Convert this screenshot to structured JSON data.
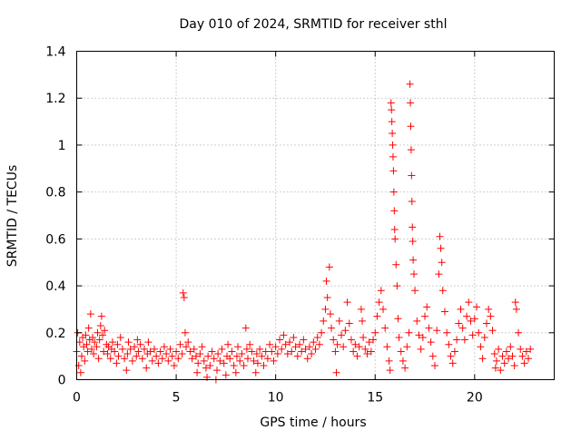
{
  "chart_data": {
    "type": "scatter",
    "title": "Day 010 of 2024, SRMTID for receiver sthl",
    "xlabel": "GPS time / hours",
    "ylabel": "SRMTID / TECUs",
    "xlim": [
      0,
      24
    ],
    "ylim": [
      0,
      1.4
    ],
    "xticks": [
      0,
      5,
      10,
      15,
      20
    ],
    "xtick_labels": [
      "0",
      "5",
      "10",
      "15",
      "20"
    ],
    "yticks": [
      0,
      0.2,
      0.4,
      0.6,
      0.8,
      1.0,
      1.2,
      1.4
    ],
    "ytick_labels": [
      "0",
      "0.2",
      "0.4",
      "0.6",
      "0.8",
      "1",
      "1.2",
      "1.4"
    ],
    "grid": true,
    "marker": "+",
    "color": "#ff0000",
    "series": [
      {
        "name": "sthl",
        "points": [
          [
            0.0,
            0.12
          ],
          [
            0.05,
            0.2
          ],
          [
            0.1,
            0.06
          ],
          [
            0.15,
            0.16
          ],
          [
            0.2,
            0.03
          ],
          [
            0.25,
            0.1
          ],
          [
            0.3,
            0.18
          ],
          [
            0.35,
            0.14
          ],
          [
            0.4,
            0.08
          ],
          [
            0.45,
            0.19
          ],
          [
            0.5,
            0.15
          ],
          [
            0.55,
            0.12
          ],
          [
            0.6,
            0.22
          ],
          [
            0.65,
            0.17
          ],
          [
            0.7,
            0.28
          ],
          [
            0.75,
            0.13
          ],
          [
            0.8,
            0.18
          ],
          [
            0.85,
            0.11
          ],
          [
            0.9,
            0.16
          ],
          [
            1.0,
            0.14
          ],
          [
            1.05,
            0.2
          ],
          [
            1.1,
            0.09
          ],
          [
            1.15,
            0.17
          ],
          [
            1.2,
            0.23
          ],
          [
            1.25,
            0.27
          ],
          [
            1.3,
            0.19
          ],
          [
            1.35,
            0.12
          ],
          [
            1.4,
            0.21
          ],
          [
            1.5,
            0.15
          ],
          [
            1.55,
            0.11
          ],
          [
            1.6,
            0.14
          ],
          [
            1.7,
            0.09
          ],
          [
            1.75,
            0.13
          ],
          [
            1.8,
            0.16
          ],
          [
            1.9,
            0.12
          ],
          [
            2.0,
            0.07
          ],
          [
            2.05,
            0.15
          ],
          [
            2.1,
            0.1
          ],
          [
            2.2,
            0.18
          ],
          [
            2.3,
            0.13
          ],
          [
            2.4,
            0.09
          ],
          [
            2.5,
            0.04
          ],
          [
            2.55,
            0.11
          ],
          [
            2.6,
            0.16
          ],
          [
            2.7,
            0.13
          ],
          [
            2.8,
            0.08
          ],
          [
            2.9,
            0.14
          ],
          [
            3.0,
            0.1
          ],
          [
            3.05,
            0.17
          ],
          [
            3.1,
            0.12
          ],
          [
            3.2,
            0.15
          ],
          [
            3.3,
            0.09
          ],
          [
            3.4,
            0.13
          ],
          [
            3.5,
            0.05
          ],
          [
            3.55,
            0.11
          ],
          [
            3.6,
            0.16
          ],
          [
            3.7,
            0.12
          ],
          [
            3.8,
            0.08
          ],
          [
            3.9,
            0.13
          ],
          [
            4.0,
            0.1
          ],
          [
            4.1,
            0.07
          ],
          [
            4.2,
            0.12
          ],
          [
            4.3,
            0.09
          ],
          [
            4.4,
            0.14
          ],
          [
            4.5,
            0.11
          ],
          [
            4.6,
            0.08
          ],
          [
            4.7,
            0.13
          ],
          [
            4.8,
            0.1
          ],
          [
            4.9,
            0.06
          ],
          [
            5.0,
            0.12
          ],
          [
            5.1,
            0.09
          ],
          [
            5.2,
            0.15
          ],
          [
            5.3,
            0.11
          ],
          [
            5.35,
            0.37
          ],
          [
            5.4,
            0.35
          ],
          [
            5.45,
            0.2
          ],
          [
            5.5,
            0.14
          ],
          [
            5.6,
            0.16
          ],
          [
            5.7,
            0.12
          ],
          [
            5.8,
            0.09
          ],
          [
            5.9,
            0.13
          ],
          [
            6.0,
            0.1
          ],
          [
            6.05,
            0.03
          ],
          [
            6.1,
            0.07
          ],
          [
            6.2,
            0.11
          ],
          [
            6.3,
            0.14
          ],
          [
            6.4,
            0.08
          ],
          [
            6.5,
            0.05
          ],
          [
            6.55,
            0.01
          ],
          [
            6.6,
            0.1
          ],
          [
            6.7,
            0.06
          ],
          [
            6.8,
            0.12
          ],
          [
            6.9,
            0.09
          ],
          [
            7.0,
            0.0
          ],
          [
            7.05,
            0.04
          ],
          [
            7.1,
            0.11
          ],
          [
            7.2,
            0.08
          ],
          [
            7.3,
            0.13
          ],
          [
            7.4,
            0.07
          ],
          [
            7.5,
            0.02
          ],
          [
            7.55,
            0.1
          ],
          [
            7.6,
            0.15
          ],
          [
            7.7,
            0.09
          ],
          [
            7.8,
            0.12
          ],
          [
            7.9,
            0.06
          ],
          [
            8.0,
            0.03
          ],
          [
            8.05,
            0.1
          ],
          [
            8.1,
            0.14
          ],
          [
            8.2,
            0.08
          ],
          [
            8.3,
            0.11
          ],
          [
            8.4,
            0.06
          ],
          [
            8.5,
            0.22
          ],
          [
            8.55,
            0.13
          ],
          [
            8.6,
            0.09
          ],
          [
            8.7,
            0.15
          ],
          [
            8.8,
            0.12
          ],
          [
            8.9,
            0.08
          ],
          [
            9.0,
            0.03
          ],
          [
            9.05,
            0.11
          ],
          [
            9.1,
            0.07
          ],
          [
            9.2,
            0.13
          ],
          [
            9.3,
            0.1
          ],
          [
            9.4,
            0.06
          ],
          [
            9.5,
            0.12
          ],
          [
            9.6,
            0.09
          ],
          [
            9.7,
            0.15
          ],
          [
            9.8,
            0.12
          ],
          [
            9.9,
            0.08
          ],
          [
            10.0,
            0.14
          ],
          [
            10.1,
            0.11
          ],
          [
            10.2,
            0.17
          ],
          [
            10.3,
            0.13
          ],
          [
            10.4,
            0.19
          ],
          [
            10.5,
            0.15
          ],
          [
            10.6,
            0.11
          ],
          [
            10.7,
            0.16
          ],
          [
            10.8,
            0.12
          ],
          [
            10.9,
            0.18
          ],
          [
            11.0,
            0.14
          ],
          [
            11.1,
            0.1
          ],
          [
            11.2,
            0.15
          ],
          [
            11.3,
            0.12
          ],
          [
            11.4,
            0.17
          ],
          [
            11.5,
            0.13
          ],
          [
            11.6,
            0.09
          ],
          [
            11.7,
            0.14
          ],
          [
            11.8,
            0.11
          ],
          [
            11.9,
            0.16
          ],
          [
            12.0,
            0.13
          ],
          [
            12.1,
            0.18
          ],
          [
            12.2,
            0.15
          ],
          [
            12.3,
            0.2
          ],
          [
            12.4,
            0.25
          ],
          [
            12.5,
            0.3
          ],
          [
            12.55,
            0.42
          ],
          [
            12.6,
            0.35
          ],
          [
            12.7,
            0.48
          ],
          [
            12.75,
            0.28
          ],
          [
            12.8,
            0.22
          ],
          [
            12.9,
            0.17
          ],
          [
            13.0,
            0.12
          ],
          [
            13.05,
            0.03
          ],
          [
            13.1,
            0.15
          ],
          [
            13.2,
            0.25
          ],
          [
            13.3,
            0.19
          ],
          [
            13.4,
            0.14
          ],
          [
            13.5,
            0.21
          ],
          [
            13.6,
            0.33
          ],
          [
            13.7,
            0.24
          ],
          [
            13.8,
            0.17
          ],
          [
            13.9,
            0.12
          ],
          [
            14.0,
            0.15
          ],
          [
            14.1,
            0.1
          ],
          [
            14.2,
            0.14
          ],
          [
            14.3,
            0.3
          ],
          [
            14.35,
            0.25
          ],
          [
            14.4,
            0.18
          ],
          [
            14.5,
            0.13
          ],
          [
            14.6,
            0.11
          ],
          [
            14.7,
            0.16
          ],
          [
            14.8,
            0.12
          ],
          [
            14.9,
            0.17
          ],
          [
            15.0,
            0.2
          ],
          [
            15.1,
            0.27
          ],
          [
            15.2,
            0.33
          ],
          [
            15.3,
            0.38
          ],
          [
            15.4,
            0.3
          ],
          [
            15.5,
            0.22
          ],
          [
            15.6,
            0.14
          ],
          [
            15.7,
            0.08
          ],
          [
            15.75,
            0.04
          ],
          [
            15.8,
            1.18
          ],
          [
            15.82,
            1.15
          ],
          [
            15.84,
            1.1
          ],
          [
            15.86,
            1.05
          ],
          [
            15.88,
            1.0
          ],
          [
            15.9,
            0.95
          ],
          [
            15.92,
            0.89
          ],
          [
            15.94,
            0.8
          ],
          [
            15.96,
            0.72
          ],
          [
            15.98,
            0.64
          ],
          [
            16.0,
            0.6
          ],
          [
            16.05,
            0.49
          ],
          [
            16.1,
            0.4
          ],
          [
            16.15,
            0.26
          ],
          [
            16.2,
            0.18
          ],
          [
            16.3,
            0.12
          ],
          [
            16.4,
            0.08
          ],
          [
            16.5,
            0.05
          ],
          [
            16.6,
            0.14
          ],
          [
            16.7,
            0.2
          ],
          [
            16.75,
            1.26
          ],
          [
            16.77,
            1.18
          ],
          [
            16.79,
            1.08
          ],
          [
            16.81,
            0.98
          ],
          [
            16.83,
            0.87
          ],
          [
            16.85,
            0.76
          ],
          [
            16.87,
            0.65
          ],
          [
            16.89,
            0.59
          ],
          [
            16.91,
            0.51
          ],
          [
            16.95,
            0.45
          ],
          [
            17.0,
            0.38
          ],
          [
            17.1,
            0.25
          ],
          [
            17.2,
            0.19
          ],
          [
            17.3,
            0.13
          ],
          [
            17.4,
            0.18
          ],
          [
            17.5,
            0.27
          ],
          [
            17.6,
            0.31
          ],
          [
            17.7,
            0.22
          ],
          [
            17.8,
            0.16
          ],
          [
            17.9,
            0.1
          ],
          [
            18.0,
            0.06
          ],
          [
            18.1,
            0.21
          ],
          [
            18.2,
            0.45
          ],
          [
            18.25,
            0.61
          ],
          [
            18.3,
            0.56
          ],
          [
            18.35,
            0.5
          ],
          [
            18.4,
            0.38
          ],
          [
            18.5,
            0.29
          ],
          [
            18.6,
            0.2
          ],
          [
            18.7,
            0.15
          ],
          [
            18.8,
            0.1
          ],
          [
            18.9,
            0.07
          ],
          [
            19.0,
            0.12
          ],
          [
            19.1,
            0.17
          ],
          [
            19.2,
            0.24
          ],
          [
            19.3,
            0.3
          ],
          [
            19.4,
            0.22
          ],
          [
            19.5,
            0.17
          ],
          [
            19.6,
            0.27
          ],
          [
            19.7,
            0.33
          ],
          [
            19.8,
            0.25
          ],
          [
            19.9,
            0.19
          ],
          [
            20.0,
            0.26
          ],
          [
            20.1,
            0.31
          ],
          [
            20.2,
            0.2
          ],
          [
            20.3,
            0.14
          ],
          [
            20.4,
            0.09
          ],
          [
            20.5,
            0.18
          ],
          [
            20.6,
            0.24
          ],
          [
            20.7,
            0.3
          ],
          [
            20.8,
            0.27
          ],
          [
            20.9,
            0.21
          ],
          [
            21.0,
            0.11
          ],
          [
            21.05,
            0.05
          ],
          [
            21.1,
            0.08
          ],
          [
            21.2,
            0.13
          ],
          [
            21.3,
            0.04
          ],
          [
            21.4,
            0.1
          ],
          [
            21.5,
            0.07
          ],
          [
            21.6,
            0.12
          ],
          [
            21.7,
            0.09
          ],
          [
            21.8,
            0.14
          ],
          [
            21.9,
            0.1
          ],
          [
            22.0,
            0.06
          ],
          [
            22.05,
            0.33
          ],
          [
            22.1,
            0.3
          ],
          [
            22.2,
            0.2
          ],
          [
            22.3,
            0.13
          ],
          [
            22.4,
            0.1
          ],
          [
            22.5,
            0.07
          ],
          [
            22.6,
            0.12
          ],
          [
            22.7,
            0.09
          ],
          [
            22.8,
            0.13
          ]
        ]
      }
    ]
  }
}
